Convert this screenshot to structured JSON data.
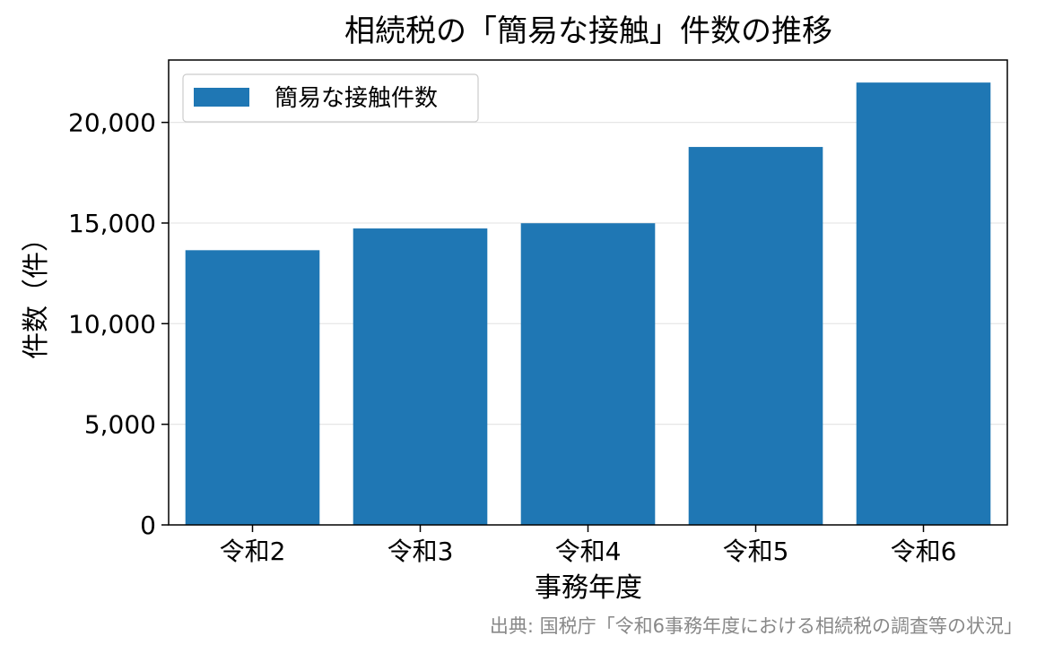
{
  "chart_data": {
    "type": "bar",
    "title": "相続税の「簡易な接触」件数の推移",
    "xlabel": "事務年度",
    "ylabel": "件数（件）",
    "categories": [
      "令和2",
      "令和3",
      "令和4",
      "令和5",
      "令和6"
    ],
    "series": [
      {
        "name": "簡易な接触件数",
        "values": [
          13650,
          14730,
          14990,
          18780,
          21980
        ],
        "color": "#1f77b4"
      }
    ],
    "ylim": [
      0,
      23100
    ],
    "yticks": [
      0,
      5000,
      10000,
      15000,
      20000
    ],
    "ytick_labels": [
      "0",
      "5,000",
      "10,000",
      "15,000",
      "20,000"
    ],
    "grid": "horizontal",
    "legend_position": "upper-left",
    "source_note": "出典: 国税庁「令和6事務年度における相続税の調査等の状況」"
  }
}
